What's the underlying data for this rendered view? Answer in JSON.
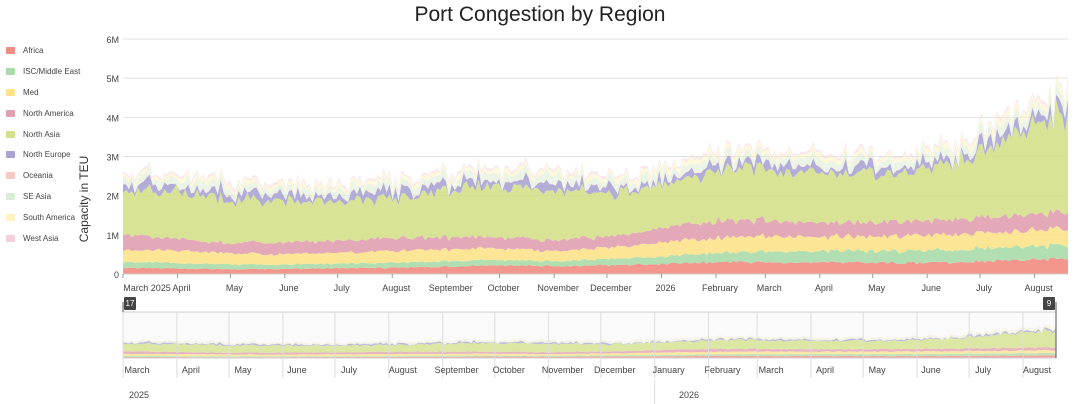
{
  "chart_data": {
    "type": "area",
    "stacked": true,
    "title": "Port Congestion by Region",
    "ylabel": "Capacity in TEU",
    "xlabel": "",
    "ylim": [
      0,
      6000000
    ],
    "y_ticks": [
      "0",
      "1M",
      "2M",
      "3M",
      "4M",
      "5M",
      "6M"
    ],
    "x_range": [
      "2025-03-01",
      "2026-08-20"
    ],
    "x_tick_labels": [
      "March 2025",
      "April",
      "May",
      "June",
      "July",
      "August",
      "September",
      "October",
      "November",
      "December",
      "2026",
      "February",
      "March",
      "April",
      "May",
      "June",
      "July",
      "August"
    ],
    "grid": "horizontal",
    "legend_position": "left",
    "categories": [
      "2025-03",
      "2025-04",
      "2025-05",
      "2025-06",
      "2025-07",
      "2025-08",
      "2025-09",
      "2025-10",
      "2025-11",
      "2025-12",
      "2026-01",
      "2026-02",
      "2026-03",
      "2026-04",
      "2026-05",
      "2026-06",
      "2026-07",
      "2026-08"
    ],
    "series": [
      {
        "name": "Africa",
        "color": "#f28b82",
        "values": [
          150000,
          140000,
          120000,
          130000,
          150000,
          160000,
          200000,
          220000,
          200000,
          230000,
          280000,
          300000,
          290000,
          300000,
          280000,
          300000,
          350000,
          400000
        ]
      },
      {
        "name": "ISC/Middle East",
        "color": "#a8dba8",
        "values": [
          150000,
          140000,
          120000,
          110000,
          120000,
          130000,
          150000,
          130000,
          140000,
          160000,
          200000,
          250000,
          280000,
          300000,
          310000,
          320000,
          330000,
          350000
        ]
      },
      {
        "name": "Med",
        "color": "#fce38a",
        "values": [
          300000,
          320000,
          280000,
          260000,
          280000,
          300000,
          300000,
          280000,
          270000,
          300000,
          380000,
          400000,
          380000,
          360000,
          380000,
          400000,
          400000,
          420000
        ]
      },
      {
        "name": "North America",
        "color": "#e0a0b0",
        "values": [
          400000,
          300000,
          260000,
          300000,
          320000,
          330000,
          300000,
          280000,
          280000,
          300000,
          400000,
          420000,
          380000,
          350000,
          370000,
          380000,
          400000,
          430000
        ]
      },
      {
        "name": "North Asia",
        "color": "#d4e08a",
        "values": [
          1100000,
          1200000,
          1100000,
          1050000,
          1050000,
          1000000,
          1200000,
          1300000,
          1150000,
          1100000,
          1100000,
          1300000,
          1250000,
          1250000,
          1200000,
          1500000,
          2000000,
          2600000
        ]
      },
      {
        "name": "North Europe",
        "color": "#a9a4d4",
        "values": [
          150000,
          150000,
          150000,
          150000,
          150000,
          150000,
          150000,
          150000,
          150000,
          150000,
          150000,
          150000,
          150000,
          150000,
          150000,
          150000,
          170000,
          200000
        ]
      },
      {
        "name": "Oceania",
        "color": "#f8c9c2",
        "values": [
          20000,
          20000,
          20000,
          20000,
          20000,
          20000,
          20000,
          20000,
          20000,
          20000,
          20000,
          20000,
          20000,
          20000,
          20000,
          20000,
          20000,
          20000
        ]
      },
      {
        "name": "SE Asia",
        "color": "#d9ecd4",
        "values": [
          150000,
          170000,
          160000,
          150000,
          150000,
          150000,
          160000,
          180000,
          160000,
          160000,
          170000,
          180000,
          170000,
          170000,
          170000,
          190000,
          210000,
          240000
        ]
      },
      {
        "name": "South America",
        "color": "#fdf3c0",
        "values": [
          100000,
          110000,
          100000,
          100000,
          100000,
          100000,
          110000,
          120000,
          110000,
          110000,
          120000,
          130000,
          120000,
          120000,
          120000,
          130000,
          150000,
          180000
        ]
      },
      {
        "name": "West Asia",
        "color": "#f4d0dc",
        "values": [
          50000,
          50000,
          50000,
          50000,
          50000,
          50000,
          50000,
          50000,
          50000,
          50000,
          50000,
          50000,
          50000,
          50000,
          50000,
          50000,
          60000,
          70000
        ]
      }
    ],
    "navigator": {
      "x_tick_labels": [
        "March",
        "April",
        "May",
        "June",
        "July",
        "August",
        "September",
        "October",
        "November",
        "December",
        "January",
        "February",
        "March",
        "April",
        "May",
        "June",
        "July",
        "August"
      ],
      "year_labels": [
        "2025",
        "2026"
      ],
      "handle_left": "17",
      "handle_right": "9"
    }
  }
}
